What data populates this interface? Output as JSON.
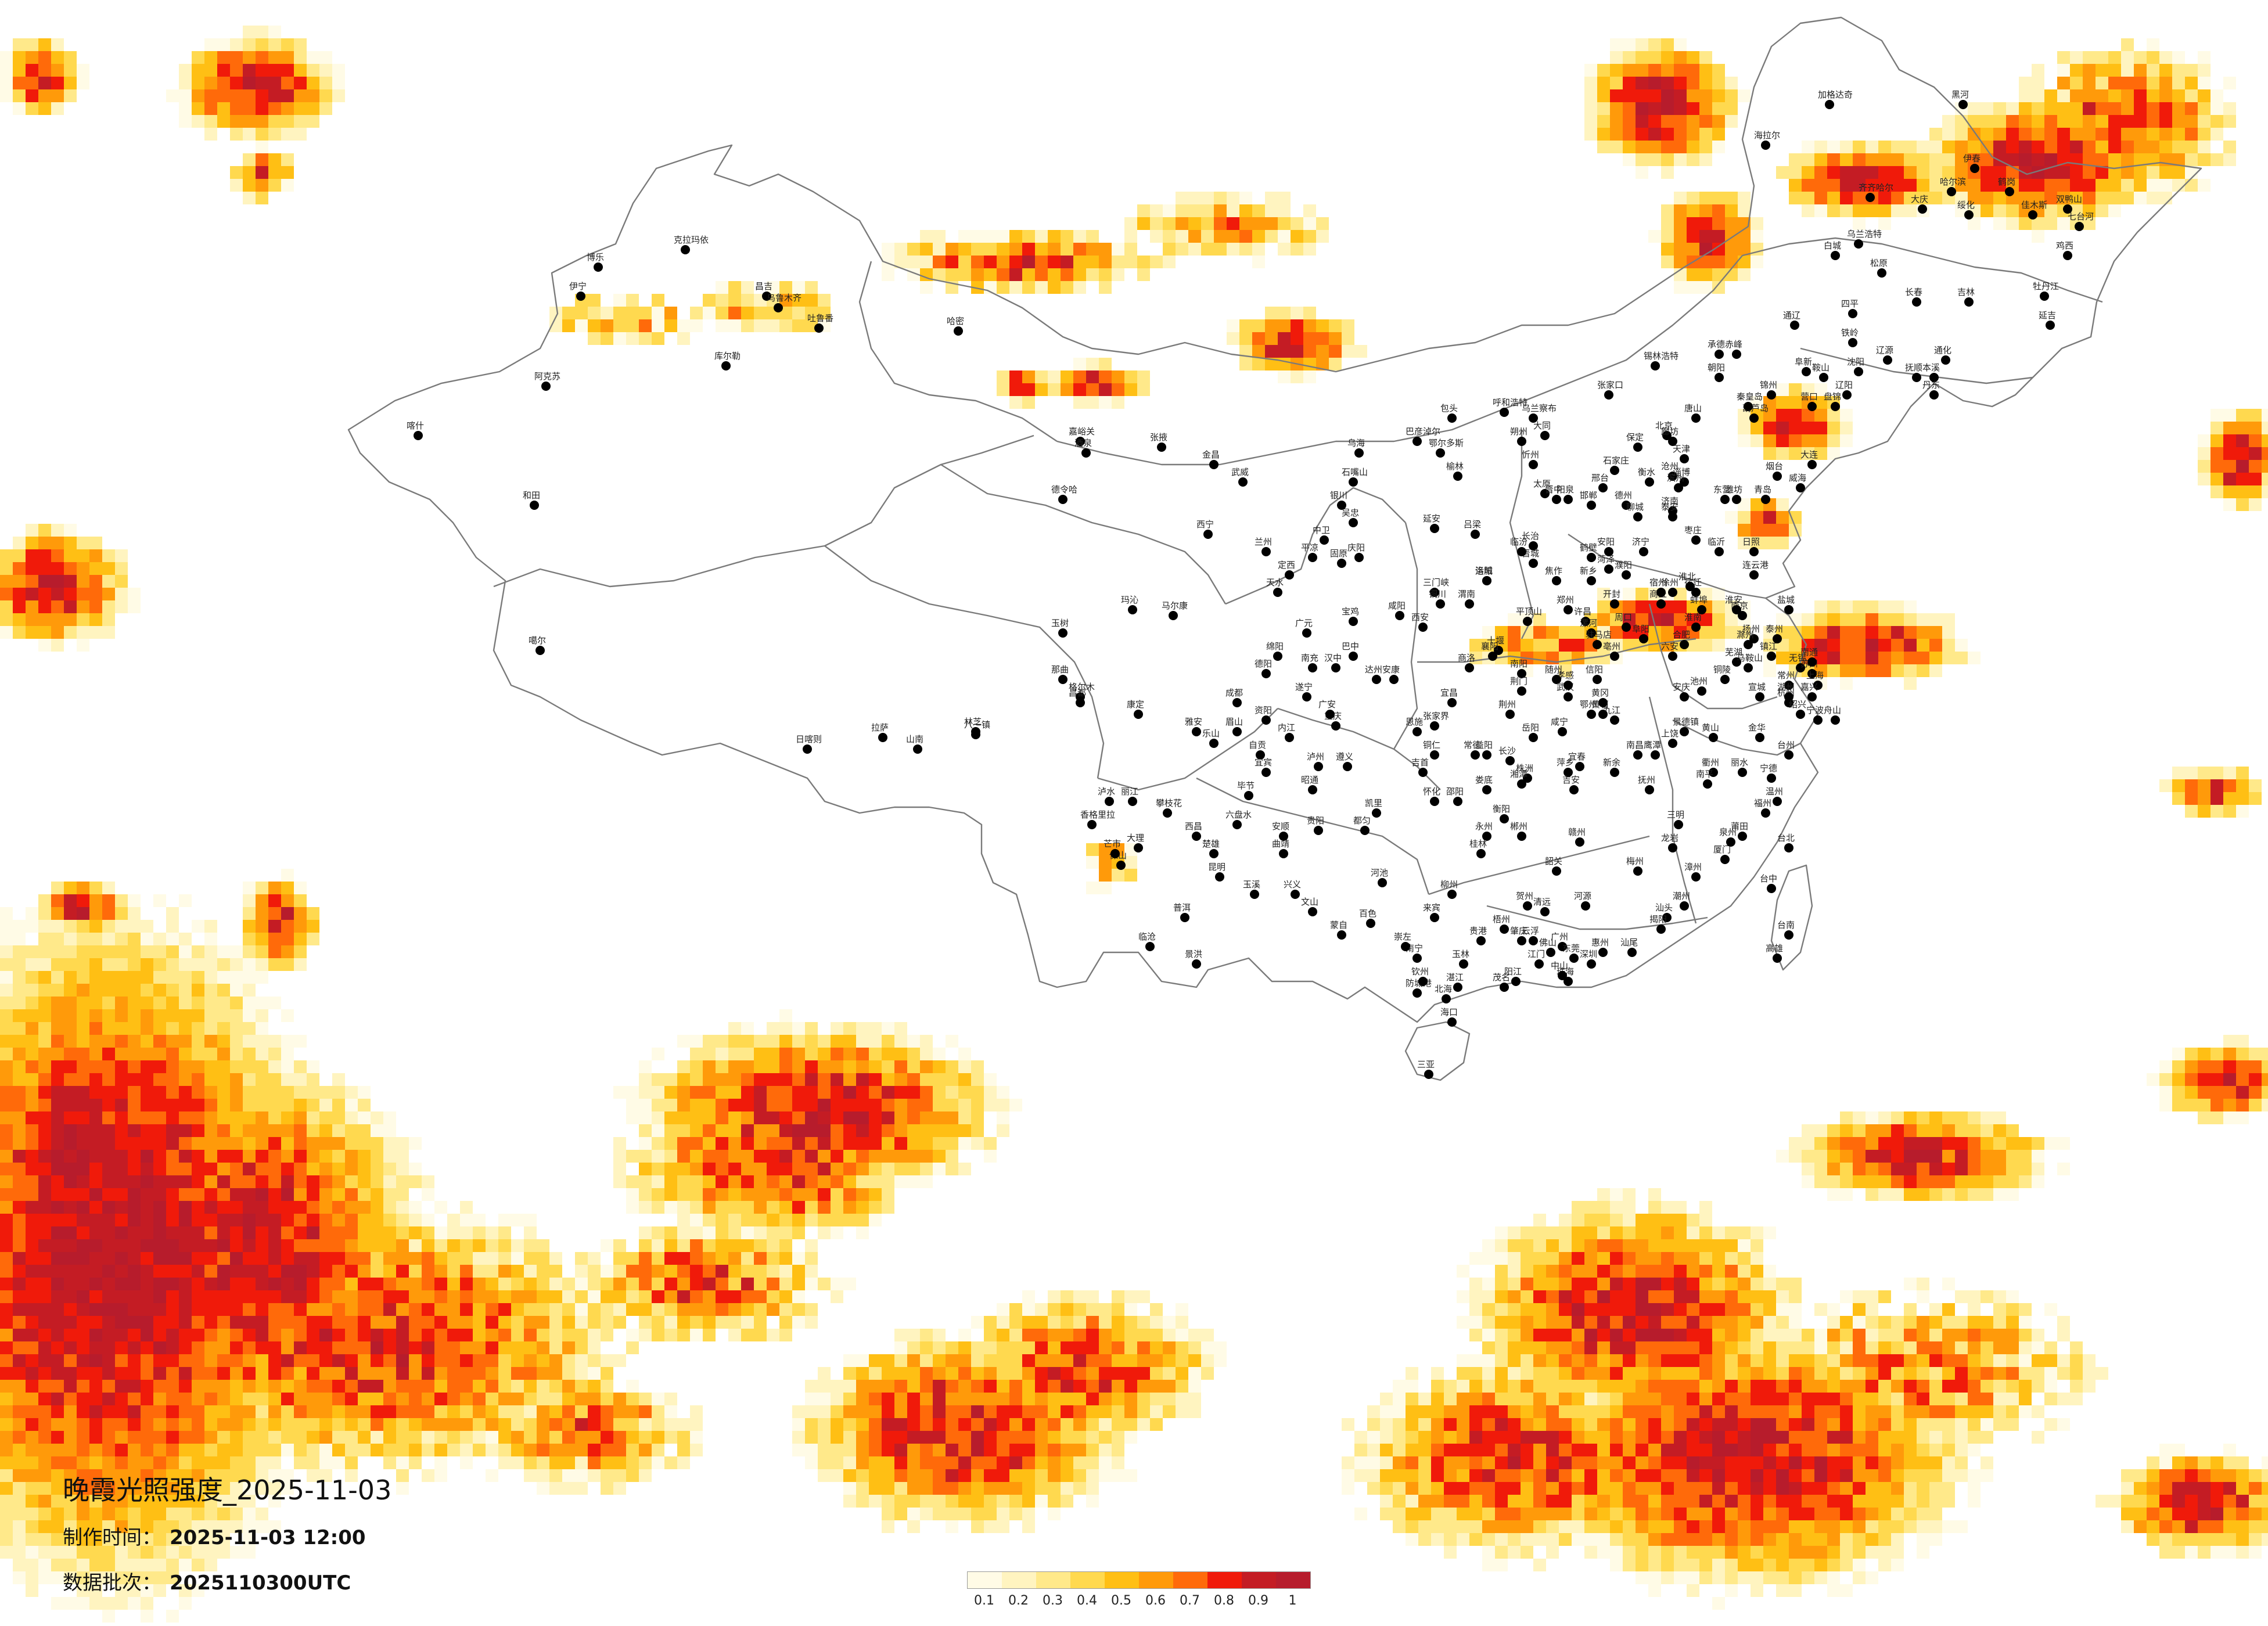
{
  "title": "晚霞光照强度_2025-11-03",
  "meta": {
    "produced_label": "制作时间：",
    "produced_value": "2025-11-03 12:00",
    "batch_label": "数据批次：",
    "batch_value": "2025110300UTC"
  },
  "legend": {
    "ticks": [
      "0.1",
      "0.2",
      "0.3",
      "0.4",
      "0.5",
      "0.6",
      "0.7",
      "0.8",
      "0.9",
      "1"
    ],
    "colors": [
      "#fffbe6",
      "#fff4c0",
      "#ffe98a",
      "#ffd94f",
      "#ffbf14",
      "#ff9a0a",
      "#ff6a0a",
      "#f01a0a",
      "#c41c24",
      "#b71c2c"
    ]
  },
  "cities": [
    "克拉玛依",
    "伊宁",
    "博乐",
    "昌吉",
    "乌鲁木齐",
    "吐鲁番",
    "哈密",
    "库尔勒",
    "阿克苏",
    "喀什",
    "和田",
    "嘉峪关",
    "酒泉",
    "张掖",
    "金昌",
    "武威",
    "兰州",
    "西宁",
    "德令哈",
    "格尔木",
    "玛沁",
    "玉树",
    "拉萨",
    "日喀则",
    "山南",
    "林芝",
    "昌都",
    "那曲",
    "噶尔",
    "八一镇",
    "银川",
    "石嘴山",
    "吴忠",
    "中卫",
    "固原",
    "天水",
    "平凉",
    "庆阳",
    "定西",
    "包头",
    "呼和浩特",
    "乌海",
    "鄂尔多斯",
    "巴彦淖尔",
    "乌兰察布",
    "锡林浩特",
    "赤峰",
    "通辽",
    "海拉尔",
    "加格达奇",
    "乌兰浩特",
    "齐齐哈尔",
    "大庆",
    "哈尔滨",
    "绥化",
    "伊春",
    "佳木斯",
    "鹤岗",
    "双鸭山",
    "七台河",
    "鸡西",
    "牡丹江",
    "黑河",
    "长春",
    "吉林",
    "四平",
    "辽源",
    "通化",
    "白城",
    "松原",
    "延吉",
    "沈阳",
    "大连",
    "鞍山",
    "抚顺",
    "本溪",
    "丹东",
    "锦州",
    "营口",
    "阜新",
    "辽阳",
    "铁岭",
    "朝阳",
    "盘锦",
    "葫芦岛",
    "北京",
    "天津",
    "石家庄",
    "唐山",
    "秦皇岛",
    "邯郸",
    "邢台",
    "保定",
    "张家口",
    "承德",
    "沧州",
    "廊坊",
    "衡水",
    "太原",
    "大同",
    "阳泉",
    "长治",
    "晋城",
    "朔州",
    "晋中",
    "运城",
    "忻州",
    "临汾",
    "吕梁",
    "济南",
    "青岛",
    "淄博",
    "枣庄",
    "东营",
    "烟台",
    "潍坊",
    "济宁",
    "泰安",
    "威海",
    "日照",
    "临沂",
    "德州",
    "聊城",
    "滨州",
    "菏泽",
    "郑州",
    "开封",
    "洛阳",
    "平顶山",
    "安阳",
    "鹤壁",
    "新乡",
    "焦作",
    "濮阳",
    "许昌",
    "漯河",
    "三门峡",
    "南阳",
    "商丘",
    "信阳",
    "周口",
    "驻马店",
    "西安",
    "铜川",
    "宝鸡",
    "咸阳",
    "渭南",
    "延安",
    "汉中",
    "榆林",
    "安康",
    "商洛",
    "南京",
    "无锡",
    "徐州",
    "常州",
    "苏州",
    "南通",
    "连云港",
    "淮安",
    "盐城",
    "扬州",
    "镇江",
    "泰州",
    "宿迁",
    "上海",
    "杭州",
    "宁波",
    "温州",
    "嘉兴",
    "湖州",
    "绍兴",
    "金华",
    "衢州",
    "舟山",
    "台州",
    "丽水",
    "合肥",
    "芜湖",
    "蚌埠",
    "淮南",
    "马鞍山",
    "淮北",
    "铜陵",
    "安庆",
    "黄山",
    "滁州",
    "阜阳",
    "宿州",
    "六安",
    "亳州",
    "池州",
    "宣城",
    "福州",
    "厦门",
    "莆田",
    "三明",
    "泉州",
    "漳州",
    "南平",
    "龙岩",
    "宁德",
    "南昌",
    "景德镇",
    "萍乡",
    "九江",
    "新余",
    "鹰潭",
    "赣州",
    "吉安",
    "宜春",
    "抚州",
    "上饶",
    "武汉",
    "黄石",
    "十堰",
    "宜昌",
    "襄阳",
    "鄂州",
    "荆门",
    "孝感",
    "荆州",
    "黄冈",
    "咸宁",
    "随州",
    "恩施",
    "长沙",
    "株洲",
    "湘潭",
    "衡阳",
    "邵阳",
    "岳阳",
    "常德",
    "张家界",
    "益阳",
    "郴州",
    "永州",
    "怀化",
    "娄底",
    "吉首",
    "广州",
    "韶关",
    "深圳",
    "珠海",
    "汕头",
    "佛山",
    "江门",
    "湛江",
    "茂名",
    "肇庆",
    "惠州",
    "梅州",
    "汕尾",
    "河源",
    "阳江",
    "清远",
    "东莞",
    "中山",
    "潮州",
    "揭阳",
    "云浮",
    "南宁",
    "柳州",
    "桂林",
    "梧州",
    "北海",
    "防城港",
    "钦州",
    "贵港",
    "玉林",
    "百色",
    "贺州",
    "河池",
    "来宾",
    "崇左",
    "海口",
    "三亚",
    "重庆",
    "成都",
    "自贡",
    "攀枝花",
    "泸州",
    "德阳",
    "绵阳",
    "广元",
    "遂宁",
    "内江",
    "乐山",
    "南充",
    "眉山",
    "宜宾",
    "广安",
    "达州",
    "雅安",
    "巴中",
    "资阳",
    "马尔康",
    "康定",
    "西昌",
    "贵阳",
    "六盘水",
    "遵义",
    "安顺",
    "毕节",
    "铜仁",
    "凯里",
    "都匀",
    "兴义",
    "昆明",
    "曲靖",
    "玉溪",
    "保山",
    "昭通",
    "丽江",
    "普洱",
    "临沧",
    "楚雄",
    "蒙自",
    "文山",
    "景洪",
    "大理",
    "芒市",
    "泸水",
    "香格里拉",
    "台北",
    "台中",
    "台南",
    "高雄"
  ]
}
